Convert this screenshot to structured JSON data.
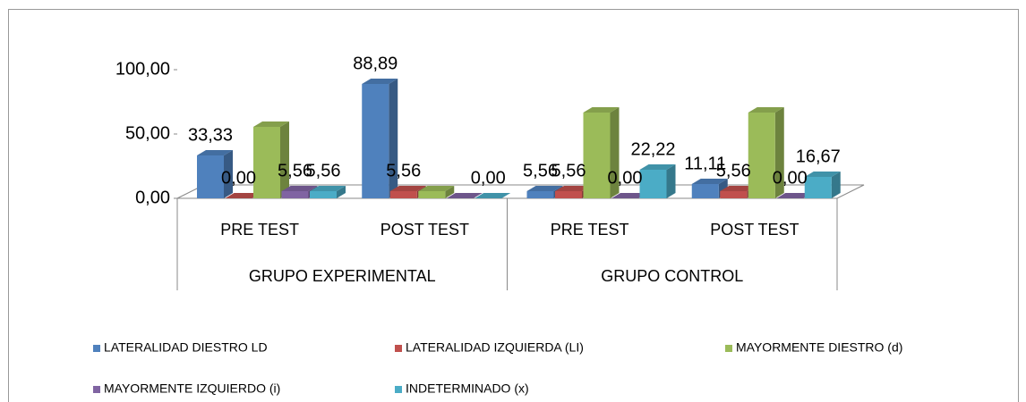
{
  "chart_data": {
    "type": "bar3d",
    "groups": [
      {
        "name": "GRUPO EXPERIMENTAL",
        "categories": [
          "PRE TEST",
          "POST TEST"
        ]
      },
      {
        "name": "GRUPO CONTROL",
        "categories": [
          "PRE TEST",
          "POST TEST"
        ]
      }
    ],
    "series": [
      {
        "name": "LATERALIDAD DIESTRO LD",
        "color": "#4f81bd",
        "values": [
          33.33,
          88.89,
          5.56,
          11.11
        ],
        "value_labels": [
          "33,33",
          "88,89",
          "5,56",
          "11,11"
        ]
      },
      {
        "name": "LATERALIDAD IZQUIERDA (LI)",
        "color": "#c0504d",
        "values": [
          0,
          5.56,
          5.56,
          5.56
        ],
        "value_labels": [
          "0,00",
          "5,56",
          "5,56",
          "5,56"
        ]
      },
      {
        "name": "MAYORMENTE DIESTRO (d)",
        "color": "#9bbb59",
        "values": [
          55.56,
          5.56,
          66.67,
          66.67
        ]
      },
      {
        "name": "MAYORMENTE IZQUIERDO (i)",
        "color": "#8064a2",
        "values": [
          5.56,
          0,
          0,
          0
        ],
        "value_labels": [
          "5,56",
          null,
          "0,00",
          "0,00"
        ]
      },
      {
        "name": "INDETERMINADO (x)",
        "color": "#4bacc6",
        "values": [
          5.56,
          0,
          22.22,
          16.67
        ],
        "value_labels": [
          "5,56",
          "0,00",
          "22,22",
          "16,67"
        ]
      }
    ],
    "ylim": [
      0,
      100
    ],
    "yticks": [
      {
        "value": 0,
        "label": "0,00"
      },
      {
        "value": 50,
        "label": "50,00"
      },
      {
        "value": 100,
        "label": "100,00"
      }
    ],
    "legend": "bottom"
  }
}
